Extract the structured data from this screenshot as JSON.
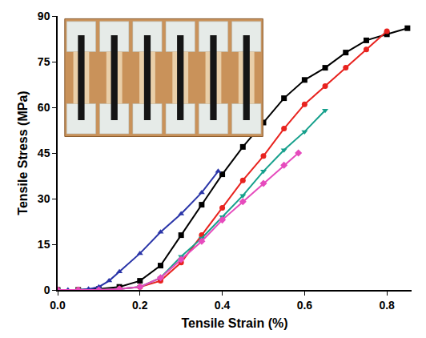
{
  "chart_data": {
    "type": "line",
    "x_label": "Tensile Strain (%)",
    "y_label": "Tensile Stress (MPa)",
    "xlim": [
      0,
      0.86
    ],
    "xticks": [
      {
        "value": 0,
        "label": "0.0"
      },
      {
        "value": 0.2,
        "label": "0.2"
      },
      {
        "value": 0.4,
        "label": "0.4"
      },
      {
        "value": 0.6,
        "label": "0.6"
      },
      {
        "value": 0.8,
        "label": "0.8"
      }
    ],
    "ylim": [
      0,
      90
    ],
    "yticks": [
      0,
      15,
      30,
      45,
      60,
      75,
      90
    ],
    "grid": false,
    "series": [
      {
        "color": "#000000",
        "marker": "square",
        "x": [
          0,
          0.05,
          0.1,
          0.15,
          0.2,
          0.25,
          0.3,
          0.35,
          0.4,
          0.45,
          0.5,
          0.55,
          0.6,
          0.65,
          0.7,
          0.75,
          0.8,
          0.85
        ],
        "values": [
          0,
          0,
          0.3,
          1,
          3,
          8,
          18,
          28,
          38,
          47,
          55,
          63,
          69,
          73,
          78,
          82,
          84,
          86
        ]
      },
      {
        "color": "#e8231f",
        "marker": "circle",
        "x": [
          0,
          0.05,
          0.1,
          0.15,
          0.2,
          0.25,
          0.3,
          0.35,
          0.4,
          0.45,
          0.5,
          0.55,
          0.6,
          0.65,
          0.7,
          0.75,
          0.8
        ],
        "values": [
          0,
          0,
          0,
          0.3,
          1,
          3,
          9,
          18,
          27,
          36,
          44,
          53,
          61,
          67,
          73,
          79,
          85
        ]
      },
      {
        "color": "#2a35a8",
        "marker": "triangle-up",
        "x": [
          0,
          0.025,
          0.05,
          0.075,
          0.1,
          0.125,
          0.15,
          0.2,
          0.25,
          0.3,
          0.35,
          0.39
        ],
        "values": [
          0,
          0,
          0,
          0.3,
          1,
          3,
          6,
          12,
          19,
          25,
          32,
          39
        ]
      },
      {
        "color": "#16a08c",
        "marker": "triangle-down",
        "x": [
          0,
          0.05,
          0.1,
          0.15,
          0.2,
          0.25,
          0.3,
          0.35,
          0.4,
          0.45,
          0.5,
          0.55,
          0.6,
          0.65
        ],
        "values": [
          0,
          0,
          0,
          0.3,
          1,
          4,
          11,
          17,
          24,
          31,
          39,
          46,
          52,
          59
        ]
      },
      {
        "color": "#e64bbd",
        "marker": "diamond",
        "x": [
          0,
          0.05,
          0.1,
          0.15,
          0.2,
          0.25,
          0.3,
          0.35,
          0.4,
          0.45,
          0.5,
          0.55,
          0.585
        ],
        "values": [
          0,
          0,
          0,
          0.3,
          1,
          4,
          10,
          16,
          23,
          29,
          35,
          41,
          45
        ]
      }
    ]
  }
}
